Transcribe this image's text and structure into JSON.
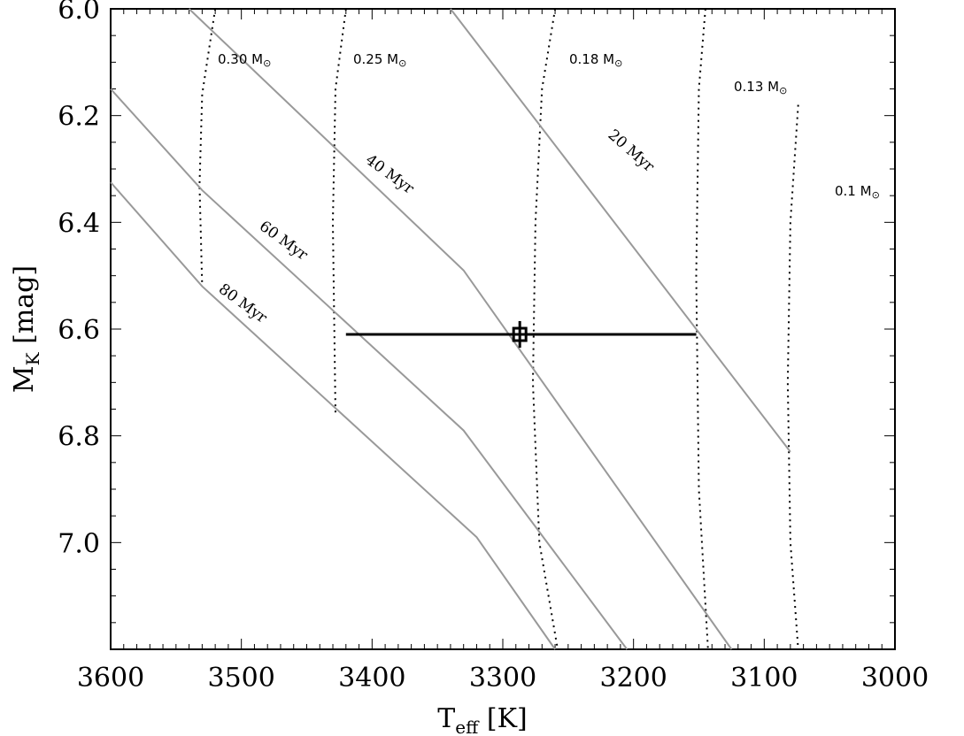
{
  "chart_data": {
    "type": "line",
    "xlabel": {
      "main": "T",
      "sub": "eff",
      "unit": " [K]"
    },
    "ylabel": {
      "main": "M",
      "sub": "K",
      "unit": " [mag]"
    },
    "xlim": [
      3600,
      3000
    ],
    "ylim": [
      6.0,
      7.2
    ],
    "xticks": [
      3600,
      3500,
      3400,
      3300,
      3200,
      3100,
      3000
    ],
    "xtick_labels": [
      "3600",
      "3500",
      "3400",
      "3300",
      "3200",
      "3100",
      "3000"
    ],
    "yticks": [
      6.0,
      6.2,
      6.4,
      6.6,
      6.8,
      7.0
    ],
    "ytick_labels": [
      "6.0",
      "6.2",
      "6.4",
      "6.6",
      "6.8",
      "7.0"
    ],
    "isochrones": [
      {
        "label": "20 Myr",
        "color": "#999999",
        "points": [
          [
            3340,
            6.0
          ],
          [
            3080,
            6.83
          ]
        ]
      },
      {
        "label": "40 Myr",
        "color": "#999999",
        "points": [
          [
            3540,
            6.0
          ],
          [
            3330,
            6.49
          ],
          [
            3125,
            7.2
          ]
        ]
      },
      {
        "label": "60 Myr",
        "color": "#999999",
        "points": [
          [
            3600,
            6.15
          ],
          [
            3530,
            6.34
          ],
          [
            3330,
            6.79
          ],
          [
            3205,
            7.2
          ]
        ]
      },
      {
        "label": "80 Myr",
        "color": "#999999",
        "points": [
          [
            3600,
            6.325
          ],
          [
            3530,
            6.52
          ],
          [
            3320,
            6.99
          ],
          [
            3260,
            7.2
          ]
        ]
      }
    ],
    "mass_tracks": [
      {
        "label": "0.30 M",
        "points": [
          [
            3520,
            6.0
          ],
          [
            3530,
            6.16
          ],
          [
            3532,
            6.33
          ],
          [
            3530,
            6.52
          ]
        ]
      },
      {
        "label": "0.25 M",
        "points": [
          [
            3420,
            6.0
          ],
          [
            3428,
            6.15
          ],
          [
            3430,
            6.4
          ],
          [
            3428,
            6.76
          ]
        ]
      },
      {
        "label": "0.18 M",
        "points": [
          [
            3260,
            6.0
          ],
          [
            3270,
            6.15
          ],
          [
            3275,
            6.4
          ],
          [
            3277,
            6.7
          ],
          [
            3272,
            7.0
          ],
          [
            3258,
            7.2
          ]
        ]
      },
      {
        "label": "0.13 M",
        "points": [
          [
            3145,
            6.0
          ],
          [
            3150,
            6.15
          ],
          [
            3152,
            6.5
          ],
          [
            3150,
            6.9
          ],
          [
            3143,
            7.2
          ]
        ]
      },
      {
        "label": "0.1 M",
        "points": [
          [
            3074,
            6.18
          ],
          [
            3080,
            6.4
          ],
          [
            3082,
            6.7
          ],
          [
            3080,
            7.0
          ],
          [
            3074,
            7.2
          ]
        ]
      }
    ],
    "data_point": {
      "x": 3287,
      "y": 6.61,
      "x_err_low": 3420,
      "x_err_high": 3152,
      "y_err": 0.025
    }
  }
}
